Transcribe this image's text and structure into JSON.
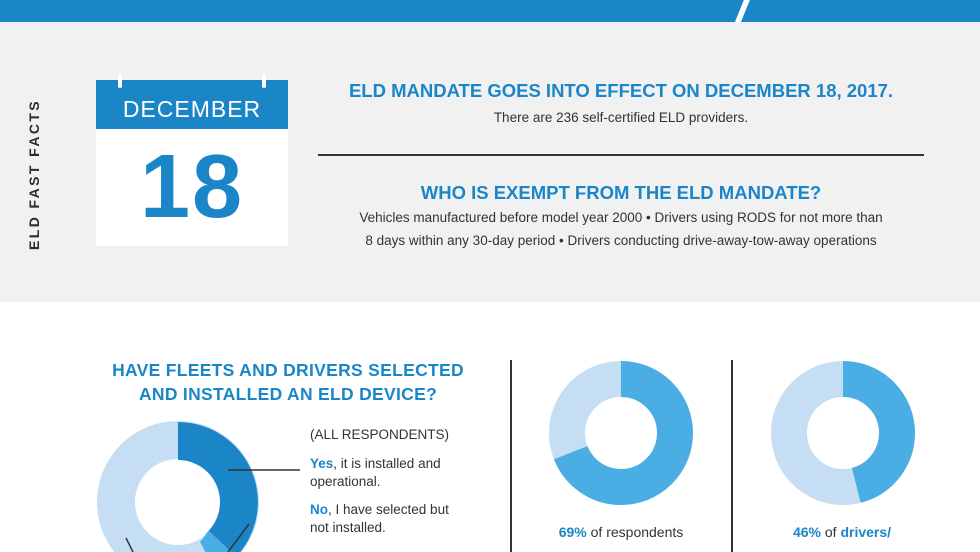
{
  "side_label": "ELD FAST FACTS",
  "calendar": {
    "month": "DECEMBER",
    "day": "18"
  },
  "facts": [
    {
      "title": "ELD MANDATE GOES INTO EFFECT ON DECEMBER 18, 2017.",
      "text": "There are 236 self-certified ELD providers."
    },
    {
      "title": "WHO IS EXEMPT FROM THE ELD MANDATE?",
      "line1": "Vehicles manufactured before model year 2000 • Drivers using RODS for not more than",
      "line2": "8 days within any 30-day period • Drivers conducting drive-away-tow-away operations"
    }
  ],
  "question": {
    "title_line1": "HAVE FLEETS AND DRIVERS SELECTED",
    "title_line2": "AND INSTALLED AN ELD DEVICE?",
    "note": "(ALL RESPONDENTS)",
    "legend": [
      {
        "bold": "Yes",
        "rest": ", it is installed and",
        "line2": "operational."
      },
      {
        "bold": "No",
        "rest": ", I have selected but",
        "line2": "not installed."
      }
    ]
  },
  "stats": [
    {
      "pct": "69%",
      "text": " of respondents",
      "percent_value": 69
    },
    {
      "pct": "46%",
      "text": " of ",
      "bold2": "drivers/",
      "percent_value": 46
    }
  ],
  "colors": {
    "brand_blue": "#1a86c8",
    "donut_light": "#c5def3",
    "donut_mid": "#4aaee4",
    "background_gray": "#f1f1f2"
  }
}
